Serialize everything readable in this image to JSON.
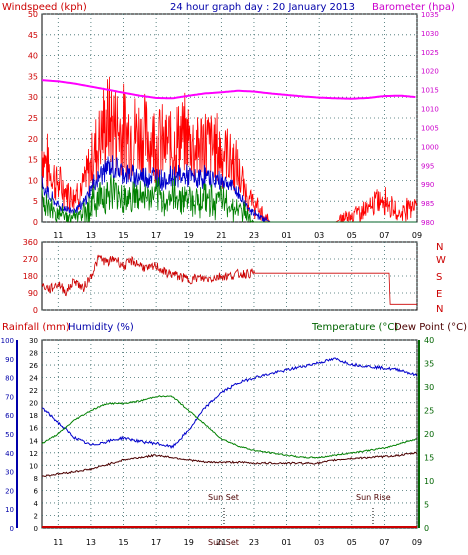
{
  "header": {
    "wind_label": "Windspeed (kph)",
    "title": "24 hour graph day : 20 January 2013",
    "baro_label": "Barometer (hpa)"
  },
  "lower_header": {
    "rain_label": "Rainfall (mm)",
    "humidity_label": "Humidity (%)",
    "temp_label": "Temperature (°C)",
    "dew_label": "Dew Point (°C)"
  },
  "annotations": {
    "sunset": "Sun Set",
    "sunrise": "Sun Rise",
    "overlap": "Sun Set"
  },
  "time_ticks": [
    "11",
    "13",
    "15",
    "17",
    "19",
    "21",
    "23",
    "01",
    "03",
    "05",
    "07",
    "09"
  ],
  "colors": {
    "wind_gust": "#ff0000",
    "wind_avg": "#0000cc",
    "wind_low": "#008000",
    "barometer": "#ff00ff",
    "direction": "#cc0000",
    "temperature": "#008000",
    "humidity": "#0000cc",
    "dewpoint": "#4b0000",
    "rainfall": "#cc0000",
    "axis_wind": "#cc0000",
    "axis_baro": "#cc00cc",
    "axis_blue": "#0000aa",
    "axis_green": "#006400"
  },
  "chart_data": [
    {
      "type": "line",
      "title": "24 hour graph day : 20 January 2013",
      "x_ticks": [
        "11",
        "13",
        "15",
        "17",
        "19",
        "21",
        "23",
        "01",
        "03",
        "05",
        "07",
        "09"
      ],
      "left_axis": {
        "label": "Windspeed (kph)",
        "range": [
          0,
          50
        ],
        "ticks": [
          0,
          5,
          10,
          15,
          20,
          25,
          30,
          35,
          40,
          45,
          50
        ]
      },
      "right_axis": {
        "label": "Barometer (hpa)",
        "range": [
          980,
          1035
        ],
        "ticks": [
          980,
          985,
          990,
          995,
          1000,
          1005,
          1010,
          1015,
          1020,
          1025,
          1030,
          1035
        ]
      },
      "grid": true,
      "series": [
        {
          "name": "Windspeed (kph)",
          "style": "gust",
          "x": [
            10,
            10.5,
            11,
            11.5,
            12,
            12.5,
            13,
            13.5,
            14,
            14.5,
            15,
            15.5,
            16,
            16.5,
            17,
            17.5,
            18,
            18.5,
            19,
            19.5,
            20,
            20.5,
            21,
            21.5,
            22,
            22.5,
            23,
            23.5,
            24,
            25,
            26,
            27,
            28,
            29,
            30,
            30.5,
            31,
            31.5,
            32,
            32.5,
            33
          ],
          "y": [
            17,
            12,
            9,
            7,
            7,
            8,
            14,
            20,
            24,
            23,
            22,
            21,
            21,
            20,
            20,
            18,
            19,
            20,
            20,
            18,
            19,
            18,
            17,
            16,
            12,
            7,
            4,
            2,
            0,
            0,
            0,
            0,
            0,
            2,
            3,
            5,
            6,
            3,
            2,
            4,
            5
          ]
        },
        {
          "name": "Average",
          "style": "avg",
          "x": [
            10,
            10.5,
            11,
            11.5,
            12,
            12.5,
            13,
            13.5,
            14,
            14.5,
            15,
            15.5,
            16,
            16.5,
            17,
            17.5,
            18,
            18.5,
            19,
            19.5,
            20,
            20.5,
            21,
            21.5,
            22,
            22.5,
            23,
            23.5,
            24,
            25,
            26,
            27,
            28,
            29,
            30,
            31,
            32,
            33
          ],
          "y": [
            9,
            6,
            4,
            3,
            3,
            4,
            8,
            11,
            13,
            13,
            12,
            11,
            11,
            11,
            11,
            10,
            11,
            11,
            11,
            10,
            11,
            10,
            10,
            9,
            7,
            4,
            2,
            1,
            0,
            0,
            0,
            0,
            0,
            0,
            0,
            0,
            0,
            0
          ]
        },
        {
          "name": "Low",
          "style": "low",
          "x": [
            10,
            10.5,
            11,
            11.5,
            12,
            12.5,
            13,
            13.5,
            14,
            14.5,
            15,
            15.5,
            16,
            16.5,
            17,
            17.5,
            18,
            18.5,
            19,
            19.5,
            20,
            20.5,
            21,
            21.5,
            22,
            22.5,
            23,
            24,
            25,
            26,
            27,
            28,
            29,
            30,
            31,
            32,
            33
          ],
          "y": [
            5,
            3,
            2,
            1,
            1,
            2,
            4,
            6,
            7,
            7,
            6,
            6,
            6,
            6,
            6,
            5,
            6,
            6,
            6,
            5,
            6,
            5,
            5,
            4,
            3,
            2,
            0,
            0,
            0,
            0,
            0,
            0,
            0,
            0,
            0,
            0,
            0
          ]
        },
        {
          "name": "Barometer (hpa)",
          "axis": "right",
          "x": [
            10,
            11,
            12,
            13,
            14,
            15,
            16,
            17,
            18,
            19,
            20,
            21,
            22,
            23,
            24,
            25,
            26,
            27,
            28,
            29,
            30,
            31,
            32,
            33
          ],
          "y": [
            1017.5,
            1017.2,
            1016.6,
            1015.8,
            1015,
            1014.2,
            1013.4,
            1012.8,
            1012.7,
            1013.4,
            1014,
            1014.3,
            1014.7,
            1014.5,
            1014,
            1013.6,
            1013.2,
            1012.9,
            1012.7,
            1012.6,
            1012.8,
            1013.3,
            1013.4,
            1013
          ]
        }
      ]
    },
    {
      "type": "scatter",
      "title": "",
      "x_ticks": [],
      "left_axis": {
        "label": "",
        "range": [
          0,
          360
        ],
        "ticks": [
          0,
          90,
          180,
          270,
          360
        ]
      },
      "right_axis_labels": [
        "N",
        "W",
        "S",
        "E",
        "N"
      ],
      "grid": true,
      "series": [
        {
          "name": "Wind direction",
          "x": [
            10,
            10.5,
            11,
            11.5,
            12,
            12.5,
            13,
            13.5,
            14,
            14.5,
            15,
            15.5,
            16,
            16.5,
            17,
            17.5,
            18,
            18.5,
            19,
            19.5,
            20,
            20.5,
            21,
            21.5,
            22,
            23,
            24,
            25,
            26,
            27,
            28,
            29,
            30,
            31,
            31.3,
            31.4,
            33
          ],
          "y": [
            130,
            110,
            140,
            95,
            160,
            110,
            180,
            280,
            250,
            275,
            230,
            260,
            240,
            215,
            235,
            200,
            190,
            175,
            160,
            170,
            165,
            170,
            180,
            180,
            190,
            195,
            195,
            195,
            195,
            195,
            195,
            195,
            195,
            195,
            195,
            30,
            30
          ]
        }
      ]
    },
    {
      "type": "line",
      "title": "",
      "x_ticks": [
        "11",
        "13",
        "15",
        "17",
        "19",
        "21",
        "23",
        "01",
        "03",
        "05",
        "07",
        "09"
      ],
      "left_axis_humidity": {
        "label": "Humidity (%)",
        "range": [
          0,
          100
        ],
        "ticks": [
          0,
          10,
          20,
          30,
          40,
          50,
          60,
          70,
          80,
          90,
          100
        ]
      },
      "left_axis_rain": {
        "label": "Rainfall (mm)",
        "range": [
          0,
          30
        ],
        "ticks": [
          0,
          2,
          4,
          6,
          8,
          10,
          12,
          14,
          16,
          18,
          20,
          22,
          24,
          26,
          28,
          30
        ]
      },
      "right_axis": {
        "label": "Temperature (°C)",
        "range": [
          0,
          40
        ],
        "ticks": [
          0,
          5,
          10,
          15,
          20,
          25,
          30,
          35,
          40
        ]
      },
      "grid": true,
      "series": [
        {
          "name": "Humidity (%)",
          "axis": "humidity",
          "x": [
            10,
            11,
            12,
            13,
            14,
            15,
            16,
            17,
            18,
            19,
            20,
            21,
            22,
            23,
            24,
            25,
            26,
            27,
            28,
            29,
            30,
            31,
            32,
            33
          ],
          "y": [
            64,
            56,
            48,
            44,
            46,
            48,
            46,
            45,
            43,
            52,
            64,
            72,
            77,
            80,
            82,
            84,
            86,
            88,
            90,
            87,
            86,
            85,
            84,
            81
          ]
        },
        {
          "name": "Temperature (°C)",
          "axis": "temp",
          "x": [
            10,
            11,
            12,
            13,
            14,
            15,
            16,
            17,
            18,
            19,
            20,
            21,
            22,
            23,
            24,
            25,
            26,
            27,
            28,
            29,
            30,
            31,
            32,
            33
          ],
          "y": [
            18,
            20,
            23,
            25,
            26.5,
            26.5,
            27,
            28,
            28,
            25,
            22,
            19,
            17.5,
            16.5,
            16,
            15.5,
            15,
            15,
            15.5,
            16,
            16.5,
            17,
            18,
            19
          ]
        },
        {
          "name": "Dew Point (°C)",
          "axis": "temp",
          "x": [
            10,
            11,
            12,
            13,
            14,
            15,
            16,
            17,
            18,
            19,
            20,
            21,
            22,
            23,
            24,
            25,
            26,
            27,
            28,
            29,
            30,
            31,
            32,
            33
          ],
          "y": [
            11,
            11.5,
            12,
            12.5,
            13.5,
            14.5,
            15,
            15.5,
            15,
            14.5,
            14,
            14,
            14,
            13.8,
            13.8,
            13.8,
            13.8,
            13.8,
            14.5,
            14.8,
            15,
            15.2,
            15.5,
            16
          ]
        },
        {
          "name": "Rainfall (mm)",
          "axis": "rain",
          "x": [
            10,
            33
          ],
          "y": [
            0,
            0
          ]
        }
      ]
    }
  ]
}
